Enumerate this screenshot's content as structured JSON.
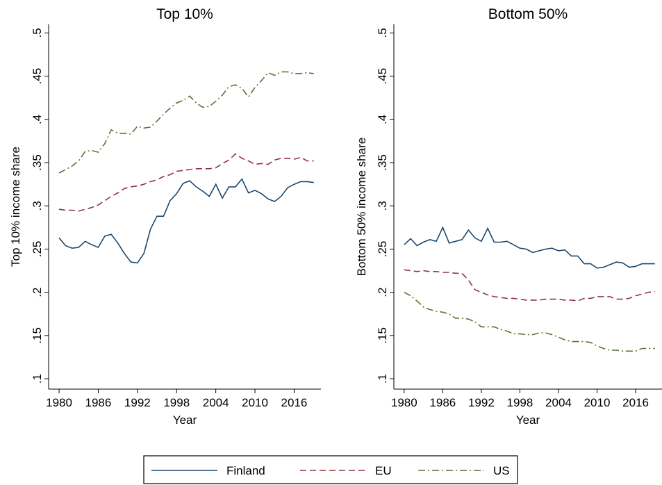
{
  "chart_data": [
    {
      "type": "line",
      "title": "Top 10%",
      "x_label": "Year",
      "y_label": "Top 10% income share",
      "x": [
        1980,
        1981,
        1982,
        1983,
        1984,
        1985,
        1986,
        1987,
        1988,
        1989,
        1990,
        1991,
        1992,
        1993,
        1994,
        1995,
        1996,
        1997,
        1998,
        1999,
        2000,
        2001,
        2002,
        2003,
        2004,
        2005,
        2006,
        2007,
        2008,
        2009,
        2010,
        2011,
        2012,
        2013,
        2014,
        2015,
        2016,
        2017,
        2018,
        2019
      ],
      "xlim": [
        1978.4,
        2020.1
      ],
      "xticks": [
        1980,
        1986,
        1992,
        1998,
        2004,
        2010,
        2016
      ],
      "ylim": [
        0.088,
        0.51
      ],
      "yticks": [
        {
          "value": 0.1,
          "label": ".1"
        },
        {
          "value": 0.15,
          "label": ".15"
        },
        {
          "value": 0.2,
          "label": ".2"
        },
        {
          "value": 0.25,
          "label": ".25"
        },
        {
          "value": 0.3,
          "label": ".3"
        },
        {
          "value": 0.35,
          "label": ".35"
        },
        {
          "value": 0.4,
          "label": ".4"
        },
        {
          "value": 0.45,
          "label": ".45"
        },
        {
          "value": 0.5,
          "label": ".5"
        }
      ],
      "series": [
        {
          "name": "Finland",
          "color": "#1a476f",
          "dash": "solid",
          "values": [
            0.263,
            0.254,
            0.251,
            0.252,
            0.259,
            0.255,
            0.252,
            0.265,
            0.267,
            0.257,
            0.245,
            0.235,
            0.234,
            0.245,
            0.273,
            0.288,
            0.288,
            0.306,
            0.314,
            0.326,
            0.329,
            0.322,
            0.317,
            0.311,
            0.325,
            0.309,
            0.322,
            0.322,
            0.331,
            0.315,
            0.318,
            0.314,
            0.308,
            0.305,
            0.311,
            0.321,
            0.325,
            0.328,
            0.328,
            0.327
          ]
        },
        {
          "name": "EU",
          "color": "#90353b",
          "dash": "dash",
          "values": [
            0.296,
            0.295,
            0.295,
            0.294,
            0.296,
            0.298,
            0.301,
            0.306,
            0.311,
            0.315,
            0.32,
            0.322,
            0.323,
            0.325,
            0.328,
            0.33,
            0.334,
            0.336,
            0.34,
            0.341,
            0.342,
            0.343,
            0.343,
            0.343,
            0.344,
            0.349,
            0.353,
            0.36,
            0.355,
            0.352,
            0.348,
            0.349,
            0.348,
            0.353,
            0.355,
            0.355,
            0.354,
            0.356,
            0.352,
            0.352
          ]
        },
        {
          "name": "US",
          "color": "#55752f",
          "dash": "dashdot",
          "values": [
            0.338,
            0.342,
            0.346,
            0.352,
            0.363,
            0.364,
            0.362,
            0.372,
            0.388,
            0.384,
            0.384,
            0.383,
            0.392,
            0.39,
            0.391,
            0.398,
            0.406,
            0.413,
            0.419,
            0.422,
            0.427,
            0.419,
            0.414,
            0.415,
            0.421,
            0.428,
            0.438,
            0.44,
            0.436,
            0.426,
            0.437,
            0.445,
            0.454,
            0.451,
            0.455,
            0.455,
            0.453,
            0.453,
            0.454,
            0.453
          ]
        }
      ]
    },
    {
      "type": "line",
      "title": "Bottom 50%",
      "x_label": "Year",
      "y_label": "Bottom 50% income share",
      "x": [
        1980,
        1981,
        1982,
        1983,
        1984,
        1985,
        1986,
        1987,
        1988,
        1989,
        1990,
        1991,
        1992,
        1993,
        1994,
        1995,
        1996,
        1997,
        1998,
        1999,
        2000,
        2001,
        2002,
        2003,
        2004,
        2005,
        2006,
        2007,
        2008,
        2009,
        2010,
        2011,
        2012,
        2013,
        2014,
        2015,
        2016,
        2017,
        2018,
        2019
      ],
      "xlim": [
        1978.4,
        2020.1
      ],
      "xticks": [
        1980,
        1986,
        1992,
        1998,
        2004,
        2010,
        2016
      ],
      "ylim": [
        0.088,
        0.51
      ],
      "yticks": [
        {
          "value": 0.1,
          "label": ".1"
        },
        {
          "value": 0.15,
          "label": ".15"
        },
        {
          "value": 0.2,
          "label": ".2"
        },
        {
          "value": 0.25,
          "label": ".25"
        },
        {
          "value": 0.3,
          "label": ".3"
        },
        {
          "value": 0.35,
          "label": ".35"
        },
        {
          "value": 0.4,
          "label": ".4"
        },
        {
          "value": 0.45,
          "label": ".45"
        },
        {
          "value": 0.5,
          "label": ".5"
        }
      ],
      "series": [
        {
          "color": "#1a476f",
          "dash": "solid",
          "values": [
            0.255,
            0.262,
            0.254,
            0.258,
            0.261,
            0.259,
            0.275,
            0.257,
            0.259,
            0.261,
            0.272,
            0.263,
            0.259,
            0.274,
            0.258,
            0.258,
            0.259,
            0.255,
            0.251,
            0.25,
            0.246,
            0.248,
            0.25,
            0.251,
            0.248,
            0.249,
            0.242,
            0.242,
            0.233,
            0.233,
            0.228,
            0.229,
            0.232,
            0.235,
            0.234,
            0.229,
            0.23,
            0.233,
            0.233,
            0.233
          ]
        },
        {
          "color": "#90353b",
          "dash": "dash",
          "values": [
            0.226,
            0.225,
            0.224,
            0.225,
            0.224,
            0.224,
            0.223,
            0.223,
            0.222,
            0.222,
            0.214,
            0.203,
            0.2,
            0.197,
            0.195,
            0.194,
            0.193,
            0.193,
            0.192,
            0.191,
            0.191,
            0.191,
            0.192,
            0.192,
            0.192,
            0.191,
            0.191,
            0.19,
            0.193,
            0.193,
            0.195,
            0.195,
            0.195,
            0.192,
            0.192,
            0.193,
            0.196,
            0.198,
            0.2,
            0.201
          ]
        },
        {
          "color": "#55752f",
          "dash": "dashdot",
          "values": [
            0.2,
            0.196,
            0.19,
            0.183,
            0.18,
            0.178,
            0.177,
            0.175,
            0.17,
            0.17,
            0.169,
            0.166,
            0.16,
            0.16,
            0.16,
            0.157,
            0.155,
            0.152,
            0.152,
            0.151,
            0.151,
            0.153,
            0.153,
            0.151,
            0.148,
            0.145,
            0.143,
            0.143,
            0.143,
            0.142,
            0.138,
            0.135,
            0.133,
            0.133,
            0.132,
            0.132,
            0.132,
            0.135,
            0.135,
            0.135
          ]
        }
      ]
    }
  ]
}
